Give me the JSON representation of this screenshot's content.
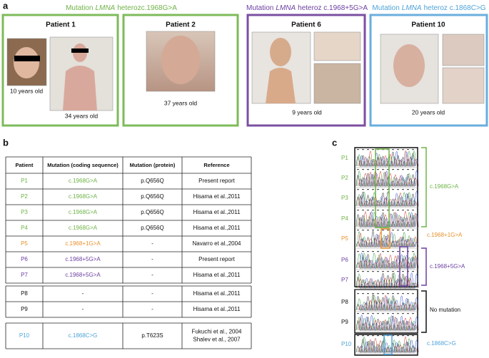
{
  "panels": {
    "a": "a",
    "b": "b",
    "c": "c"
  },
  "groups": [
    {
      "prefix": "Mutation",
      "gene": "LMNA",
      "suffix": "heterozc.1968G>A"
    },
    {
      "prefix": "Mutation",
      "gene": "LMNA",
      "suffix": "heteroz c.1968+5G>A"
    },
    {
      "prefix": "Mutation",
      "gene": "LMNA",
      "suffix": "heteroz c.1868C>G"
    }
  ],
  "patients": [
    {
      "title": "Patient 1",
      "captions": [
        "10 years old",
        "34 years old"
      ]
    },
    {
      "title": "Patient 2",
      "captions": [
        "37 years old"
      ]
    },
    {
      "title": "Patient 6",
      "captions": [
        "9 years old"
      ]
    },
    {
      "title": "Patient 10",
      "captions": [
        "20 years old"
      ]
    }
  ],
  "table": {
    "header": [
      "Patient",
      "Mutation (coding sequence)",
      "Mutation (protein)",
      "Reference"
    ],
    "rows": [
      [
        "P1",
        "c.1968G>A",
        "p.Q656Q",
        "Present report"
      ],
      [
        "P2",
        "c.1968G>A",
        "p.Q656Q",
        "Hisama et al.,2011"
      ],
      [
        "P3",
        "c.1968G>A",
        "p.Q656Q",
        "Hisama et al.,2011"
      ],
      [
        "P4",
        "c.1968G>A",
        "p.Q656Q",
        "Hisama et al.,2011"
      ],
      [
        "P5",
        "c.1968+1G>A",
        "-",
        "Navarro et al.,2004"
      ],
      [
        "P6",
        "c.1968+5G>A",
        "-",
        "Present report"
      ],
      [
        "P7",
        "c.1968+5G>A",
        "-",
        "Hisama et al.,2011"
      ],
      [
        "P8",
        "-",
        "-",
        "Hisama et al.,2011"
      ],
      [
        "P9",
        "-",
        "-",
        "Hisama et al.,2011"
      ],
      [
        "P10",
        "c.1868C>G",
        "p.T623S",
        [
          "Fukuchi et al., 2004",
          "Shalev et al., 2007"
        ]
      ]
    ]
  },
  "chromatogram": {
    "labels": [
      "P1",
      "P2",
      "P3",
      "P4",
      "P5",
      "P6",
      "P7",
      "P8",
      "P9",
      "P10"
    ],
    "annotations": [
      "c.1968G>A",
      "c.1968+1G>A",
      "c.1968+5G>A",
      "No mutation",
      "c.1868C>G"
    ]
  }
}
